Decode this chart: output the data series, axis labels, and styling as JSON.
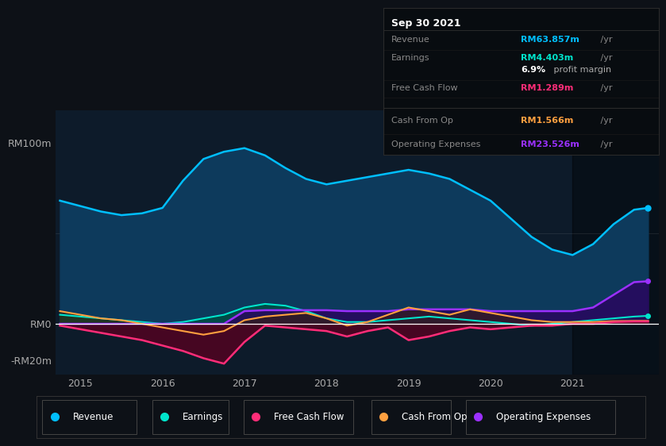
{
  "bg_color": "#0d1117",
  "plot_bg_color": "#0d1b2a",
  "title": "Sep 30 2021",
  "ylim": [
    -28,
    118
  ],
  "yticks": [
    -20,
    0,
    100
  ],
  "ytick_labels": [
    "-RM20m",
    "RM0",
    "RM100m"
  ],
  "xlim": [
    2014.7,
    2022.05
  ],
  "xticks": [
    2015,
    2016,
    2017,
    2018,
    2019,
    2020,
    2021
  ],
  "revenue_color": "#00bfff",
  "revenue_fill": "#0d3a5c",
  "earnings_color": "#00e5cc",
  "earnings_fill": "#004d44",
  "fcf_color": "#ff2d78",
  "fcf_fill": "#5a0020",
  "cashop_color": "#ffa040",
  "cashop_fill": "#3d2200",
  "opex_color": "#9b30ff",
  "opex_fill": "#2d0060",
  "shade_start": 2021.0,
  "info_box": {
    "title": "Sep 30 2021",
    "revenue_label": "Revenue",
    "revenue_value": "RM63.857m",
    "revenue_unit": " /yr",
    "revenue_color": "#00bfff",
    "earnings_label": "Earnings",
    "earnings_value": "RM4.403m",
    "earnings_unit": " /yr",
    "earnings_color": "#00e5cc",
    "margin_value": "6.9%",
    "margin_text": " profit margin",
    "fcf_label": "Free Cash Flow",
    "fcf_value": "RM1.289m",
    "fcf_unit": " /yr",
    "fcf_color": "#ff2d78",
    "cashop_label": "Cash From Op",
    "cashop_value": "RM1.566m",
    "cashop_unit": " /yr",
    "cashop_color": "#ffa040",
    "opex_label": "Operating Expenses",
    "opex_value": "RM23.526m",
    "opex_unit": " /yr",
    "opex_color": "#9b30ff"
  },
  "legend": [
    {
      "label": "Revenue",
      "color": "#00bfff"
    },
    {
      "label": "Earnings",
      "color": "#00e5cc"
    },
    {
      "label": "Free Cash Flow",
      "color": "#ff2d78"
    },
    {
      "label": "Cash From Op",
      "color": "#ffa040"
    },
    {
      "label": "Operating Expenses",
      "color": "#9b30ff"
    }
  ],
  "revenue_x": [
    2014.75,
    2015.0,
    2015.25,
    2015.5,
    2015.75,
    2016.0,
    2016.25,
    2016.5,
    2016.75,
    2017.0,
    2017.25,
    2017.5,
    2017.75,
    2018.0,
    2018.25,
    2018.5,
    2018.75,
    2019.0,
    2019.25,
    2019.5,
    2019.75,
    2020.0,
    2020.25,
    2020.5,
    2020.75,
    2021.0,
    2021.25,
    2021.5,
    2021.75,
    2021.92
  ],
  "revenue_y": [
    68,
    65,
    62,
    60,
    61,
    64,
    79,
    91,
    95,
    97,
    93,
    86,
    80,
    77,
    79,
    81,
    83,
    85,
    83,
    80,
    74,
    68,
    58,
    48,
    41,
    38,
    44,
    55,
    63,
    64
  ],
  "earnings_x": [
    2014.75,
    2015.0,
    2015.25,
    2015.5,
    2015.75,
    2016.0,
    2016.25,
    2016.5,
    2016.75,
    2017.0,
    2017.25,
    2017.5,
    2017.75,
    2018.0,
    2018.25,
    2018.5,
    2018.75,
    2019.0,
    2019.25,
    2019.5,
    2019.75,
    2020.0,
    2020.25,
    2020.5,
    2020.75,
    2021.0,
    2021.25,
    2021.5,
    2021.75,
    2021.92
  ],
  "earnings_y": [
    5,
    4,
    3,
    2,
    1,
    0,
    1,
    3,
    5,
    9,
    11,
    10,
    7,
    3,
    1,
    1,
    2,
    3,
    4,
    3,
    2,
    1,
    0,
    -1,
    0,
    1,
    2,
    3,
    4,
    4.4
  ],
  "fcf_x": [
    2014.75,
    2015.0,
    2015.25,
    2015.5,
    2015.75,
    2016.0,
    2016.25,
    2016.5,
    2016.75,
    2017.0,
    2017.25,
    2017.5,
    2017.75,
    2018.0,
    2018.25,
    2018.5,
    2018.75,
    2019.0,
    2019.25,
    2019.5,
    2019.75,
    2020.0,
    2020.25,
    2020.5,
    2020.75,
    2021.0,
    2021.25,
    2021.5,
    2021.75,
    2021.92
  ],
  "fcf_y": [
    -1,
    -3,
    -5,
    -7,
    -9,
    -12,
    -15,
    -19,
    -22,
    -10,
    -1,
    -2,
    -3,
    -4,
    -7,
    -4,
    -2,
    -9,
    -7,
    -4,
    -2,
    -3,
    -2,
    -1,
    -1,
    0,
    0,
    1,
    1.3,
    1.3
  ],
  "cashop_x": [
    2014.75,
    2015.0,
    2015.25,
    2015.5,
    2015.75,
    2016.0,
    2016.25,
    2016.5,
    2016.75,
    2017.0,
    2017.25,
    2017.5,
    2017.75,
    2018.0,
    2018.25,
    2018.5,
    2018.75,
    2019.0,
    2019.25,
    2019.5,
    2019.75,
    2020.0,
    2020.25,
    2020.5,
    2020.75,
    2021.0,
    2021.25,
    2021.5,
    2021.75,
    2021.92
  ],
  "cashop_y": [
    7,
    5,
    3,
    2,
    0,
    -2,
    -4,
    -6,
    -4,
    2,
    4,
    5,
    6,
    3,
    -1,
    1,
    5,
    9,
    7,
    5,
    8,
    6,
    4,
    2,
    1,
    1,
    1,
    1.5,
    1.6,
    1.6
  ],
  "opex_x": [
    2014.75,
    2015.0,
    2015.25,
    2015.5,
    2015.75,
    2016.0,
    2016.25,
    2016.5,
    2016.75,
    2017.0,
    2017.25,
    2017.5,
    2017.75,
    2018.0,
    2018.25,
    2018.5,
    2018.75,
    2019.0,
    2019.25,
    2019.5,
    2019.75,
    2020.0,
    2020.25,
    2020.5,
    2020.75,
    2021.0,
    2021.25,
    2021.5,
    2021.75,
    2021.92
  ],
  "opex_y": [
    0,
    0,
    0,
    0,
    0,
    0,
    0,
    0,
    0,
    7,
    7.5,
    7.5,
    7.5,
    7.5,
    7,
    7,
    7,
    8,
    8,
    8,
    8,
    7,
    7,
    7,
    7,
    7,
    9,
    16,
    23,
    23.5
  ]
}
